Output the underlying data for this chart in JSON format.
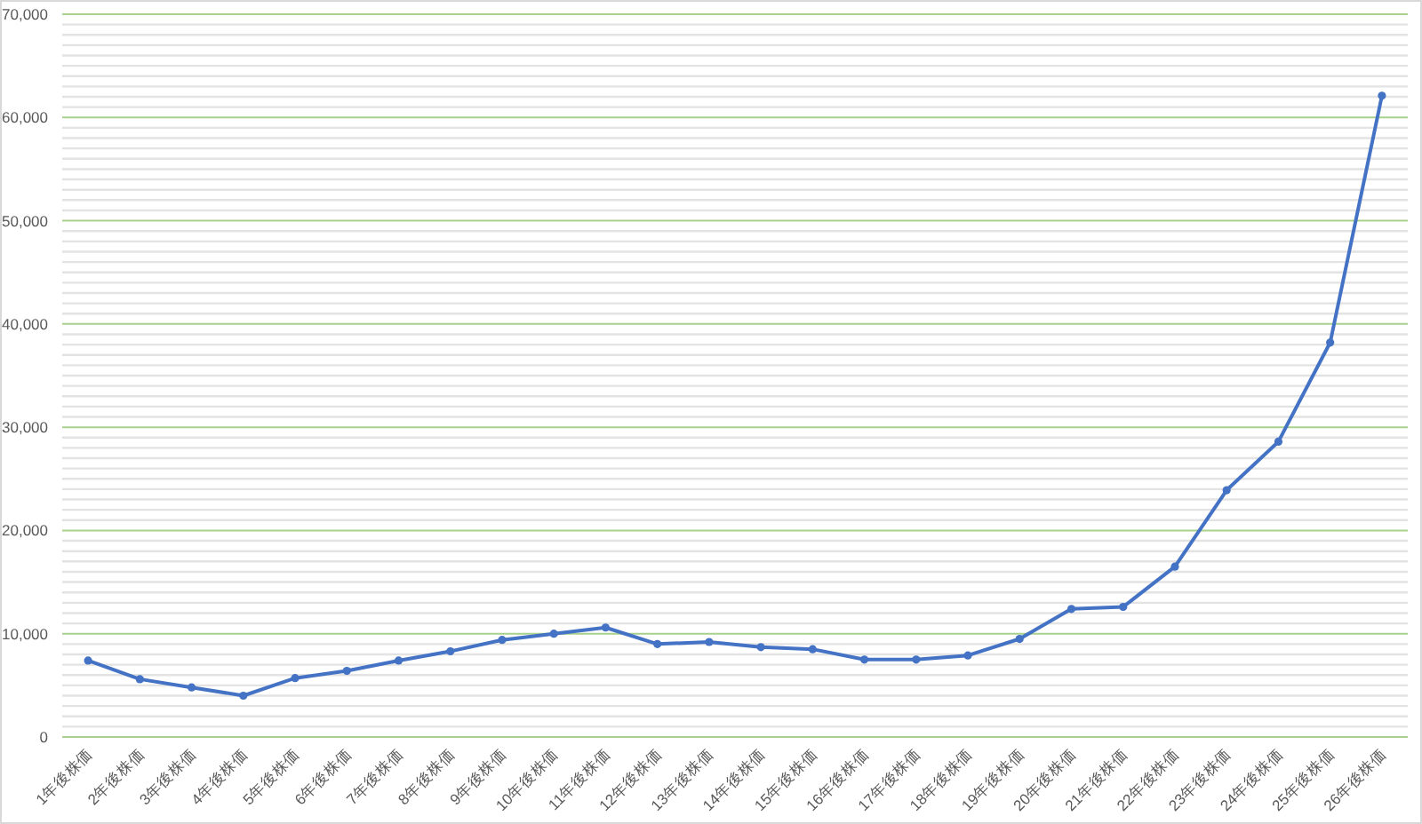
{
  "chart_data": {
    "type": "line",
    "categories": [
      "1年後株価",
      "2年後株価",
      "3年後株価",
      "4年後株価",
      "5年後株価",
      "6年後株価",
      "7年後株価",
      "8年後株価",
      "9年後株価",
      "10年後株価",
      "11年後株価",
      "12年後株価",
      "13年後株価",
      "14年後株価",
      "15年後株価",
      "16年後株価",
      "17年後株価",
      "18年後株価",
      "19年後株価",
      "20年後株価",
      "21年後株価",
      "22年後株価",
      "23年後株価",
      "24年後株価",
      "25年後株価",
      "26年後株価"
    ],
    "series": [
      {
        "color": "#4472c4",
        "values": [
          7400,
          5600,
          4800,
          4000,
          5700,
          6400,
          7400,
          8300,
          9400,
          10000,
          10600,
          9000,
          9200,
          8700,
          8500,
          7500,
          7500,
          7900,
          9500,
          12400,
          12600,
          16500,
          23900,
          28600,
          38200,
          62100
        ]
      }
    ],
    "ylim": [
      0,
      70000
    ],
    "yticks": [
      {
        "value": 0,
        "label": "0"
      },
      {
        "value": 1000,
        "label": null
      },
      {
        "value": 2000,
        "label": null
      },
      {
        "value": 3000,
        "label": null
      },
      {
        "value": 4000,
        "label": null
      },
      {
        "value": 5000,
        "label": null
      },
      {
        "value": 6000,
        "label": null
      },
      {
        "value": 7000,
        "label": null
      },
      {
        "value": 8000,
        "label": null
      },
      {
        "value": 9000,
        "label": null
      },
      {
        "value": 10000,
        "label": "10,000"
      },
      {
        "value": 11000,
        "label": null
      },
      {
        "value": 12000,
        "label": null
      },
      {
        "value": 13000,
        "label": null
      },
      {
        "value": 14000,
        "label": null
      },
      {
        "value": 15000,
        "label": null
      },
      {
        "value": 16000,
        "label": null
      },
      {
        "value": 17000,
        "label": null
      },
      {
        "value": 18000,
        "label": null
      },
      {
        "value": 19000,
        "label": null
      },
      {
        "value": 20000,
        "label": "20,000"
      },
      {
        "value": 21000,
        "label": null
      },
      {
        "value": 22000,
        "label": null
      },
      {
        "value": 23000,
        "label": null
      },
      {
        "value": 24000,
        "label": null
      },
      {
        "value": 25000,
        "label": null
      },
      {
        "value": 26000,
        "label": null
      },
      {
        "value": 27000,
        "label": null
      },
      {
        "value": 28000,
        "label": null
      },
      {
        "value": 29000,
        "label": null
      },
      {
        "value": 30000,
        "label": "30,000"
      },
      {
        "value": 31000,
        "label": null
      },
      {
        "value": 32000,
        "label": null
      },
      {
        "value": 33000,
        "label": null
      },
      {
        "value": 34000,
        "label": null
      },
      {
        "value": 35000,
        "label": null
      },
      {
        "value": 36000,
        "label": null
      },
      {
        "value": 37000,
        "label": null
      },
      {
        "value": 38000,
        "label": null
      },
      {
        "value": 39000,
        "label": null
      },
      {
        "value": 40000,
        "label": "40,000"
      },
      {
        "value": 41000,
        "label": null
      },
      {
        "value": 42000,
        "label": null
      },
      {
        "value": 43000,
        "label": null
      },
      {
        "value": 44000,
        "label": null
      },
      {
        "value": 45000,
        "label": null
      },
      {
        "value": 46000,
        "label": null
      },
      {
        "value": 47000,
        "label": null
      },
      {
        "value": 48000,
        "label": null
      },
      {
        "value": 49000,
        "label": null
      },
      {
        "value": 50000,
        "label": "50,000"
      },
      {
        "value": 51000,
        "label": null
      },
      {
        "value": 52000,
        "label": null
      },
      {
        "value": 53000,
        "label": null
      },
      {
        "value": 54000,
        "label": null
      },
      {
        "value": 55000,
        "label": null
      },
      {
        "value": 56000,
        "label": null
      },
      {
        "value": 57000,
        "label": null
      },
      {
        "value": 58000,
        "label": null
      },
      {
        "value": 59000,
        "label": null
      },
      {
        "value": 60000,
        "label": "60,000"
      },
      {
        "value": 61000,
        "label": null
      },
      {
        "value": 62000,
        "label": null
      },
      {
        "value": 63000,
        "label": null
      },
      {
        "value": 64000,
        "label": null
      },
      {
        "value": 65000,
        "label": null
      },
      {
        "value": 66000,
        "label": null
      },
      {
        "value": 67000,
        "label": null
      },
      {
        "value": 68000,
        "label": null
      },
      {
        "value": 69000,
        "label": null
      },
      {
        "value": 70000,
        "label": "70,000"
      }
    ],
    "grid": "y",
    "marker": "circle",
    "line_style": "solid"
  }
}
